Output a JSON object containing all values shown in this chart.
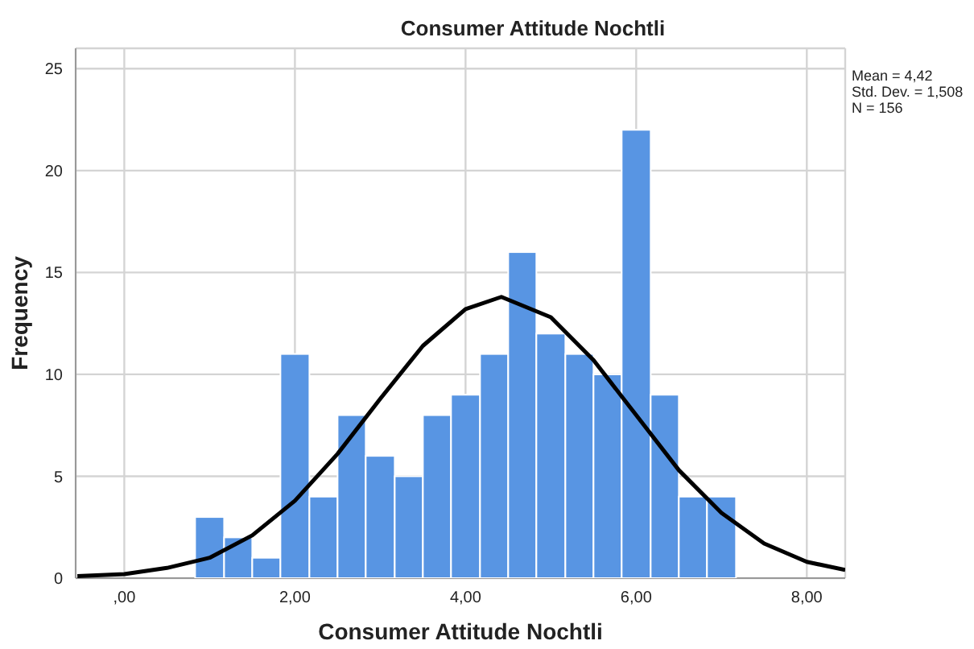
{
  "chart_data": {
    "type": "histogram",
    "title": "Consumer Attitude Nochtli",
    "xlabel": "Consumer Attitude Nochtli",
    "ylabel": "Frequency",
    "bins": [
      0.83,
      1.17,
      1.5,
      1.83,
      2.17,
      2.5,
      2.83,
      3.17,
      3.5,
      3.83,
      4.17,
      4.5,
      4.83,
      5.17,
      5.5,
      5.83,
      6.17,
      6.5,
      6.83,
      7.17
    ],
    "values": [
      3,
      2,
      1,
      11,
      4,
      8,
      6,
      5,
      8,
      9,
      11,
      16,
      12,
      11,
      10,
      22,
      9,
      4,
      4
    ],
    "color": "#5895e3",
    "series": [
      {
        "type": "line",
        "color": "#000000",
        "x": [
          -0.55,
          0,
          0.5,
          1,
          1.5,
          2,
          2.5,
          3,
          3.5,
          4,
          4.42,
          5,
          5.5,
          6,
          6.5,
          7,
          7.5,
          8,
          8.45
        ],
        "values": [
          0.1,
          0.2,
          0.5,
          1,
          2.1,
          3.8,
          6.1,
          8.8,
          11.4,
          13.2,
          13.8,
          12.8,
          10.7,
          8,
          5.3,
          3.2,
          1.7,
          0.8,
          0.4
        ]
      }
    ],
    "xlim": [
      -0.57,
      8.45
    ],
    "xticks": [
      {
        "value": 0,
        "label": ",00"
      },
      {
        "value": 2,
        "label": "2,00"
      },
      {
        "value": 4,
        "label": "4,00"
      },
      {
        "value": 6,
        "label": "6,00"
      },
      {
        "value": 8,
        "label": "8,00"
      }
    ],
    "ylim": [
      0,
      26
    ],
    "yticks": [
      0,
      5,
      10,
      15,
      20,
      25
    ],
    "grid": true,
    "annotations": [
      "Mean = 4,42",
      "Std. Dev. = 1,508",
      "N = 156"
    ]
  }
}
